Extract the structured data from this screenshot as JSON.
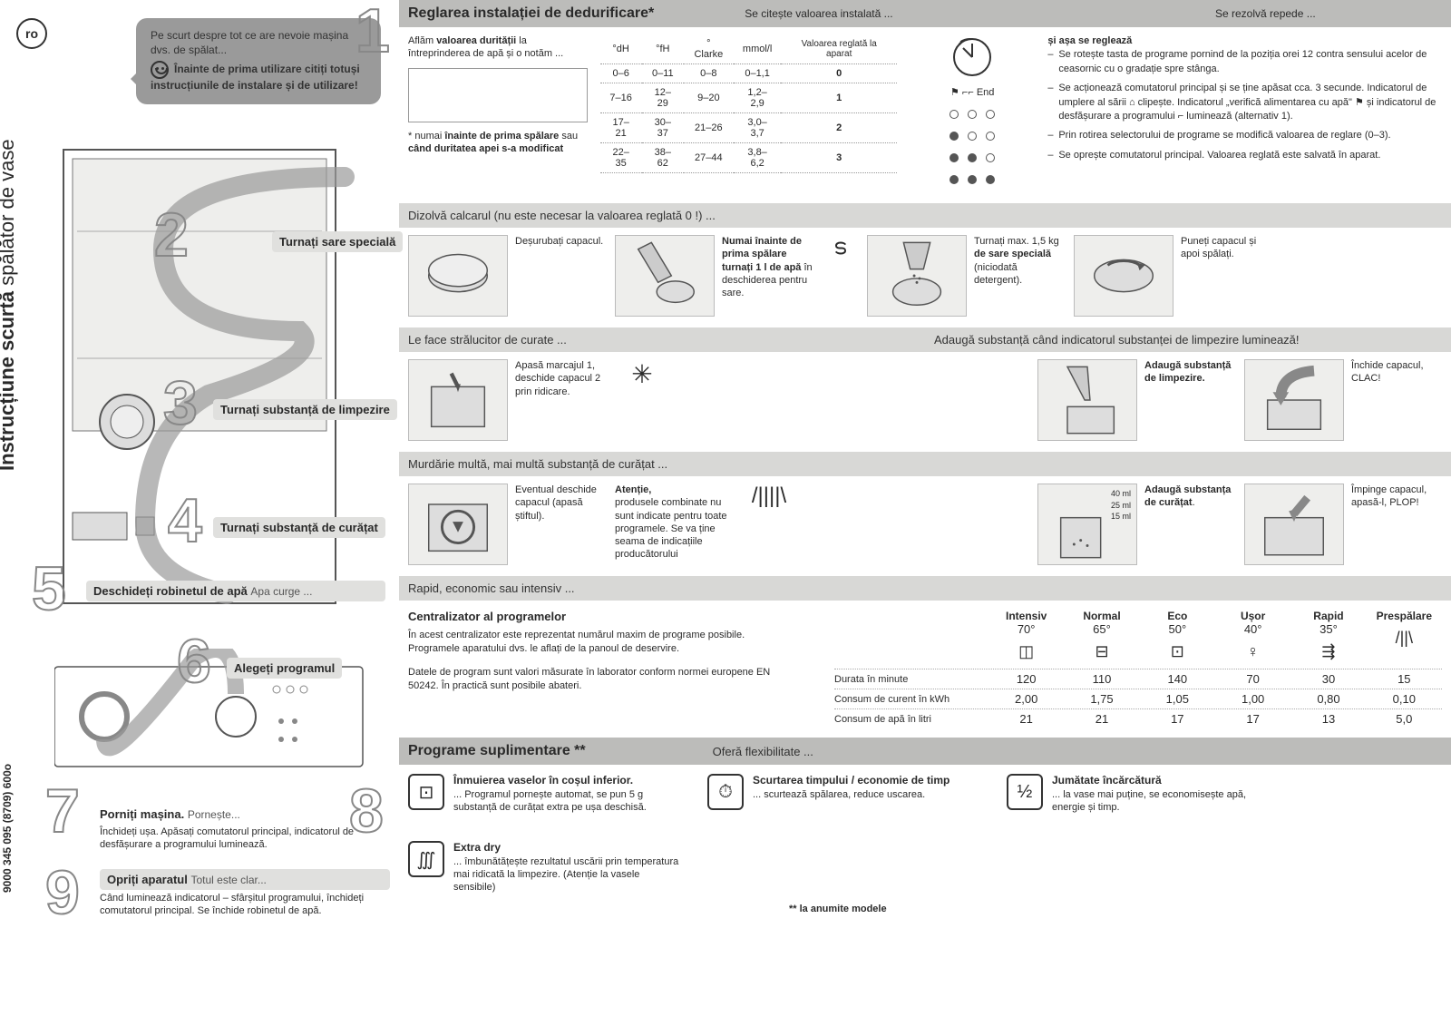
{
  "lang": "ro",
  "doc_code": "9000 345 095 (8709)  600o",
  "vert_light": "spălător de vase",
  "vert_bold": "Instrucțiune scurtă",
  "intro_pre": "Pe scurt despre tot ce are nevoie mașina dvs. de spălat...",
  "intro_bold": "Înainte de prima utilizare citiți totuși instrucțiunile de instalare și de utilizare!",
  "steps": {
    "s2_label": "Turnați sare specială",
    "s3_label": "Turnați substanță de limpezire",
    "s4_label": "Turnați substanță de curățat",
    "s5_label": "Deschideți robinetul de apă",
    "s5_sub": "Apa curge ...",
    "s6_label": "Alegeți programul",
    "s7_label": "Porniți mașina.",
    "s7_sub": "Pornește...",
    "s7_desc": "Închideți ușa. Apăsați comutatorul principal, indicatorul de desfășurare a programului luminează.",
    "s9_label": "Opriți aparatul",
    "s9_sub": "Totul este clar...",
    "s9_desc": "Când luminează indicatorul – sfârșitul programului, închideți comutatorul principal. Se închide robinetul de apă."
  },
  "sec1": {
    "title": "Reglarea instalației de dedurificare*",
    "sub_top": "Se citește valoarea instalată ...",
    "quick": "Se rezolvă repede ...",
    "quick_h": "și așa se reglează",
    "left1": "Aflăm",
    "left1b": "valoarea durității",
    "left1c": "la întreprinderea de apă și o notăm ...",
    "left2": "* numai",
    "left2b": "înainte de prima spălare",
    "left2c": "sau",
    "left2d": "când duritatea apei s-a modificat",
    "th_reg": "Valoarea reglată la aparat",
    "end_lbl": "End",
    "cols": [
      "°dH",
      "°fH",
      "° Clarke",
      "mmol/l"
    ],
    "rows": [
      {
        "v": [
          "0–6",
          "0–11",
          "0–8",
          "0–1,1"
        ],
        "reg": "0",
        "d": [
          "e",
          "e",
          "e"
        ]
      },
      {
        "v": [
          "7–16",
          "12–29",
          "9–20",
          "1,2–2,9"
        ],
        "reg": "1",
        "d": [
          "f",
          "e",
          "e"
        ]
      },
      {
        "v": [
          "17–21",
          "30–37",
          "21–26",
          "3,0–3,7"
        ],
        "reg": "2",
        "d": [
          "f",
          "f",
          "e"
        ]
      },
      {
        "v": [
          "22–35",
          "38–62",
          "27–44",
          "3,8–6,2"
        ],
        "reg": "3",
        "d": [
          "f",
          "f",
          "f"
        ]
      }
    ],
    "bullets": [
      "Se rotește tasta de programe pornind de la poziția orei 12 contra sensului acelor de ceasornic cu o gradație spre stânga.",
      "Se acționează comutatorul principal și se ține apăsat cca. 3 secunde. Indicatorul de umplere al sării ⌂ clipește. Indicatorul „verifică alimentarea cu apă\" ⚑ și indicatorul de desfășurare a programului ⌐ luminează (alternativ 1).",
      "Prin rotirea selectorului de programe se modifică valoarea de reglare (0–3).",
      "Se oprește comutatorul principal. Valoarea reglată este salvată în aparat."
    ]
  },
  "sec2": {
    "sub": "Dizolvă calcarul (nu este necesar la valoarea reglată 0 !) ...",
    "i1": "Deșurubați capacul.",
    "i2b": "Numai înainte de prima spălare turnați 1 l de apă",
    "i2": "în deschiderea pentru sare.",
    "i3a": "Turnați max. 1,5 kg",
    "i3b": "de sare specială",
    "i3c": "(niciodată detergent).",
    "i4": "Puneți capacul și apoi spălați."
  },
  "sec3": {
    "sub": "Le face strălucitor de curate ...",
    "sub2": "Adaugă substanță când indicatorul substanței de limpezire luminează!",
    "i1": "Apasă marcajul 1, deschide capacul 2 prin ridicare.",
    "i2b": "Adaugă substanță de limpezire.",
    "i3": "Închide capacul, CLAC!"
  },
  "sec4": {
    "sub": "Murdărie multă, mai multă substanță de curățat ...",
    "i1": "Eventual deschide capacul (apasă știftul).",
    "i2h": "Atenție,",
    "i2": "produsele combinate nu sunt indicate pentru toate programele. Se va ține seama de indicațiile producătorului",
    "ml": [
      "40 ml",
      "25 ml",
      "15 ml"
    ],
    "i3b": "Adaugă substanța de curățat",
    "i4": "Împinge capacul, apasă-l, PLOP!"
  },
  "sec6": {
    "sub": "Rapid, economic sau intensiv ...",
    "prog_title": "Centralizator al programelor",
    "prog_d1": "În acest centralizator este reprezentat numărul maxim de programe posibile. Programele aparatului dvs. le aflați de la panoul de deservire.",
    "prog_d2": "Datele de program sunt valori măsurate în laborator conform normei europene EN 50242. În practică sunt posibile abateri.",
    "cols": [
      {
        "h": "Intensiv",
        "t": "70°",
        "icon": "◫"
      },
      {
        "h": "Normal",
        "t": "65°",
        "icon": "⊟"
      },
      {
        "h": "Eco",
        "t": "50°",
        "icon": "⊡"
      },
      {
        "h": "Ușor",
        "t": "40°",
        "icon": "♀"
      },
      {
        "h": "Rapid",
        "t": "35°",
        "icon": "⇶"
      },
      {
        "h": "Prespălare",
        "t": "",
        "icon": "/||\\"
      }
    ],
    "rows": [
      {
        "l": "Durata în minute",
        "v": [
          "120",
          "110",
          "140",
          "70",
          "30",
          "15"
        ]
      },
      {
        "l": "Consum de curent în kWh",
        "v": [
          "2,00",
          "1,75",
          "1,05",
          "1,00",
          "0,80",
          "0,10"
        ]
      },
      {
        "l": "Consum de apă în litri",
        "v": [
          "21",
          "21",
          "17",
          "17",
          "13",
          "5,0"
        ]
      }
    ]
  },
  "sec8": {
    "title": "Programe suplimentare **",
    "sub": "Oferă flexibilitate ...",
    "items": [
      {
        "icon": "⊡",
        "h": "Înmuierea vaselor în coșul inferior.",
        "t": "... Programul pornește automat, se pun 5 g substanță de curățat extra pe ușa deschisă."
      },
      {
        "icon": "⏱",
        "h": "Scurtarea timpului / economie de timp",
        "t": "... scurtează spălarea, reduce uscarea."
      },
      {
        "icon": "½",
        "h": "Jumătate încărcătură",
        "t": "... la vase mai puține, se economisește apă, energie și timp."
      },
      {
        "icon": "∭",
        "h": "Extra dry",
        "t": "... îmbunătățește rezultatul uscării prin temperatura mai ridicată la limpezire. (Atenție la vasele sensibile)"
      }
    ],
    "foot": "** la anumite modele"
  }
}
